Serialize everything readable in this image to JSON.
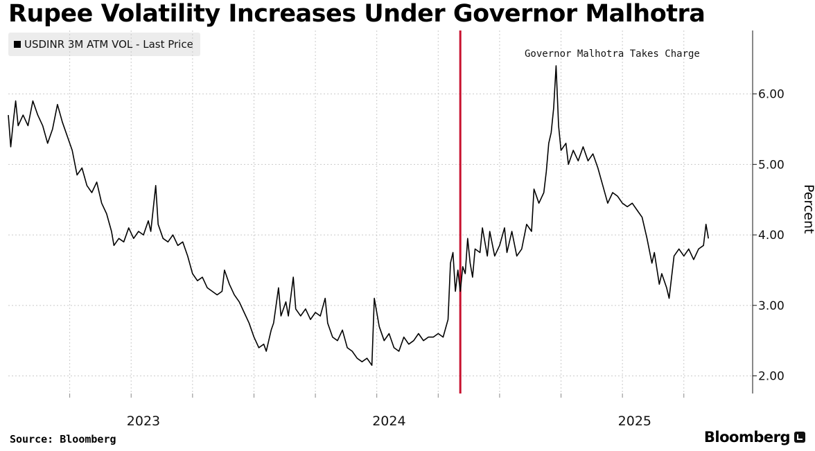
{
  "title": "Rupee Volatility Increases Under Governor Malhotra",
  "source": "Source: Bloomberg",
  "brand": "Bloomberg",
  "chart_data": {
    "type": "line",
    "title": "Rupee Volatility Increases Under Governor Malhotra",
    "ylabel": "Percent",
    "xlabel": "",
    "ylim": [
      1.75,
      6.9
    ],
    "xlim": [
      2022.5,
      2025.53
    ],
    "yticks": [
      2.0,
      3.0,
      4.0,
      5.0,
      6.0
    ],
    "ytick_labels": [
      "2.00",
      "3.00",
      "4.00",
      "5.00",
      "6.00"
    ],
    "xtick_labels": [
      "2023",
      "2024",
      "2025"
    ],
    "xtick_positions": [
      2023.0,
      2024.0,
      2025.0
    ],
    "minor_x_gridlines": [
      2022.75,
      2023.0,
      2023.25,
      2023.5,
      2023.75,
      2024.0,
      2024.25,
      2024.5,
      2024.75,
      2025.0,
      2025.25
    ],
    "grid": true,
    "legend": "top-left",
    "line_color": "#000000",
    "marker_line_color": "#c8102e",
    "annotation": {
      "text": "Governor Malhotra Takes Charge",
      "x": 2024.94
    },
    "series": [
      {
        "name": "USDINR 3M ATM VOL - Last Price",
        "points": [
          [
            2022.5,
            5.7
          ],
          [
            2022.51,
            5.25
          ],
          [
            2022.52,
            5.6
          ],
          [
            2022.53,
            5.9
          ],
          [
            2022.54,
            5.55
          ],
          [
            2022.56,
            5.7
          ],
          [
            2022.58,
            5.55
          ],
          [
            2022.6,
            5.9
          ],
          [
            2022.62,
            5.7
          ],
          [
            2022.64,
            5.55
          ],
          [
            2022.66,
            5.3
          ],
          [
            2022.68,
            5.5
          ],
          [
            2022.7,
            5.85
          ],
          [
            2022.72,
            5.6
          ],
          [
            2022.74,
            5.4
          ],
          [
            2022.76,
            5.2
          ],
          [
            2022.78,
            4.85
          ],
          [
            2022.8,
            4.95
          ],
          [
            2022.82,
            4.7
          ],
          [
            2022.84,
            4.6
          ],
          [
            2022.86,
            4.75
          ],
          [
            2022.88,
            4.45
          ],
          [
            2022.9,
            4.3
          ],
          [
            2022.92,
            4.05
          ],
          [
            2022.93,
            3.85
          ],
          [
            2022.95,
            3.95
          ],
          [
            2022.97,
            3.9
          ],
          [
            2022.99,
            4.1
          ],
          [
            2023.01,
            3.95
          ],
          [
            2023.03,
            4.05
          ],
          [
            2023.05,
            4.0
          ],
          [
            2023.07,
            4.2
          ],
          [
            2023.08,
            4.05
          ],
          [
            2023.1,
            4.7
          ],
          [
            2023.11,
            4.15
          ],
          [
            2023.13,
            3.95
          ],
          [
            2023.15,
            3.9
          ],
          [
            2023.17,
            4.0
          ],
          [
            2023.19,
            3.85
          ],
          [
            2023.21,
            3.9
          ],
          [
            2023.23,
            3.7
          ],
          [
            2023.25,
            3.45
          ],
          [
            2023.27,
            3.35
          ],
          [
            2023.29,
            3.4
          ],
          [
            2023.31,
            3.25
          ],
          [
            2023.33,
            3.2
          ],
          [
            2023.35,
            3.15
          ],
          [
            2023.37,
            3.2
          ],
          [
            2023.38,
            3.5
          ],
          [
            2023.4,
            3.3
          ],
          [
            2023.42,
            3.15
          ],
          [
            2023.44,
            3.05
          ],
          [
            2023.46,
            2.9
          ],
          [
            2023.48,
            2.75
          ],
          [
            2023.5,
            2.55
          ],
          [
            2023.52,
            2.4
          ],
          [
            2023.54,
            2.45
          ],
          [
            2023.55,
            2.35
          ],
          [
            2023.57,
            2.65
          ],
          [
            2023.58,
            2.75
          ],
          [
            2023.6,
            3.25
          ],
          [
            2023.61,
            2.85
          ],
          [
            2023.63,
            3.05
          ],
          [
            2023.64,
            2.85
          ],
          [
            2023.66,
            3.4
          ],
          [
            2023.67,
            2.95
          ],
          [
            2023.69,
            2.85
          ],
          [
            2023.71,
            2.95
          ],
          [
            2023.73,
            2.8
          ],
          [
            2023.75,
            2.9
          ],
          [
            2023.77,
            2.85
          ],
          [
            2023.79,
            3.1
          ],
          [
            2023.8,
            2.75
          ],
          [
            2023.82,
            2.55
          ],
          [
            2023.84,
            2.5
          ],
          [
            2023.86,
            2.65
          ],
          [
            2023.88,
            2.4
          ],
          [
            2023.9,
            2.35
          ],
          [
            2023.92,
            2.25
          ],
          [
            2023.94,
            2.2
          ],
          [
            2023.96,
            2.25
          ],
          [
            2023.98,
            2.15
          ],
          [
            2023.99,
            3.1
          ],
          [
            2024.01,
            2.7
          ],
          [
            2024.03,
            2.5
          ],
          [
            2024.05,
            2.6
          ],
          [
            2024.07,
            2.4
          ],
          [
            2024.09,
            2.35
          ],
          [
            2024.11,
            2.55
          ],
          [
            2024.13,
            2.45
          ],
          [
            2024.15,
            2.5
          ],
          [
            2024.17,
            2.6
          ],
          [
            2024.19,
            2.5
          ],
          [
            2024.21,
            2.55
          ],
          [
            2024.23,
            2.55
          ],
          [
            2024.25,
            2.6
          ],
          [
            2024.27,
            2.55
          ],
          [
            2024.29,
            2.8
          ],
          [
            2024.3,
            3.6
          ],
          [
            2024.31,
            3.75
          ],
          [
            2024.32,
            3.2
          ],
          [
            2024.33,
            3.5
          ],
          [
            2024.34,
            3.2
          ],
          [
            2024.35,
            3.55
          ],
          [
            2024.36,
            3.45
          ],
          [
            2024.37,
            3.95
          ],
          [
            2024.38,
            3.6
          ],
          [
            2024.39,
            3.4
          ],
          [
            2024.4,
            3.8
          ],
          [
            2024.42,
            3.75
          ],
          [
            2024.43,
            4.1
          ],
          [
            2024.45,
            3.7
          ],
          [
            2024.46,
            4.05
          ],
          [
            2024.48,
            3.7
          ],
          [
            2024.5,
            3.85
          ],
          [
            2024.52,
            4.1
          ],
          [
            2024.53,
            3.75
          ],
          [
            2024.55,
            4.05
          ],
          [
            2024.57,
            3.7
          ],
          [
            2024.59,
            3.8
          ],
          [
            2024.61,
            4.15
          ],
          [
            2024.63,
            4.05
          ],
          [
            2024.64,
            4.65
          ],
          [
            2024.66,
            4.45
          ],
          [
            2024.68,
            4.6
          ],
          [
            2024.69,
            4.9
          ],
          [
            2024.7,
            5.3
          ],
          [
            2024.71,
            5.45
          ],
          [
            2024.72,
            5.8
          ],
          [
            2024.73,
            6.4
          ],
          [
            2024.74,
            5.55
          ],
          [
            2024.75,
            5.2
          ],
          [
            2024.77,
            5.3
          ],
          [
            2024.78,
            5.0
          ],
          [
            2024.8,
            5.2
          ],
          [
            2024.82,
            5.05
          ],
          [
            2024.84,
            5.25
          ],
          [
            2024.86,
            5.05
          ],
          [
            2024.88,
            5.15
          ],
          [
            2024.9,
            4.95
          ],
          [
            2024.92,
            4.7
          ],
          [
            2024.94,
            4.45
          ],
          [
            2024.96,
            4.6
          ],
          [
            2024.98,
            4.55
          ],
          [
            2025.0,
            4.45
          ],
          [
            2025.02,
            4.4
          ],
          [
            2025.04,
            4.45
          ],
          [
            2025.06,
            4.35
          ],
          [
            2025.08,
            4.25
          ],
          [
            2025.1,
            3.95
          ],
          [
            2025.12,
            3.6
          ],
          [
            2025.13,
            3.75
          ],
          [
            2025.15,
            3.3
          ],
          [
            2025.16,
            3.45
          ],
          [
            2025.18,
            3.25
          ],
          [
            2025.19,
            3.1
          ],
          [
            2025.21,
            3.7
          ],
          [
            2025.23,
            3.8
          ],
          [
            2025.25,
            3.7
          ],
          [
            2025.27,
            3.8
          ],
          [
            2025.29,
            3.65
          ],
          [
            2025.31,
            3.8
          ],
          [
            2025.33,
            3.85
          ],
          [
            2025.34,
            4.15
          ],
          [
            2025.35,
            3.95
          ]
        ]
      }
    ]
  }
}
